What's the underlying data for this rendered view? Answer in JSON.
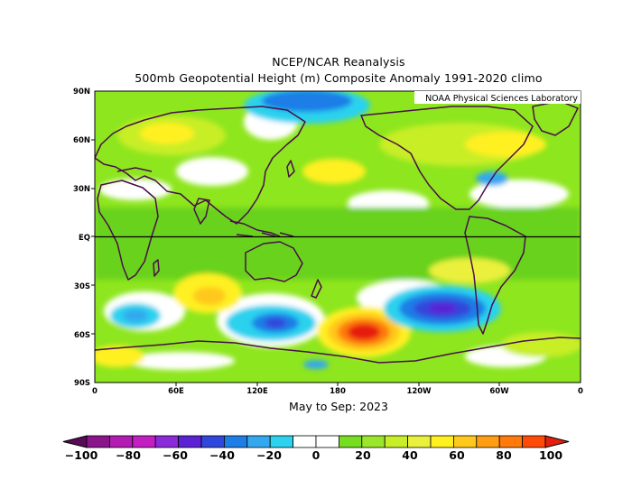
{
  "title_line1": "NCEP/NCAR Reanalysis",
  "title_line2": "500mb Geopotential Height (m) Composite Anomaly 1991-2020 climo",
  "credit": "NOAA Physical Sciences Laboratory",
  "subtitle": "May to Sep: 2023",
  "lat_labels": [
    "90N",
    "60N",
    "30N",
    "EQ",
    "30S",
    "60S",
    "90S"
  ],
  "lon_labels": [
    "0",
    "60E",
    "120E",
    "180",
    "120W",
    "60W",
    "0"
  ],
  "colorbar": {
    "colors": [
      "#5a0a5a",
      "#8a158a",
      "#b21cb2",
      "#c21ec2",
      "#8a2ad8",
      "#5a22d4",
      "#3046dc",
      "#1f7ee6",
      "#33a8ee",
      "#2cd2ee",
      "#ffffff",
      "#ffffff",
      "#77dd22",
      "#9ae62a",
      "#c8ee28",
      "#ebf03c",
      "#fff020",
      "#ffc81c",
      "#ff9e12",
      "#ff7a0a",
      "#ff4a08",
      "#e61e0e"
    ],
    "tick_labels": [
      "-100",
      "-80",
      "-60",
      "-40",
      "-20",
      "0",
      "20",
      "40",
      "60",
      "80",
      "100"
    ],
    "range": [
      -100,
      100
    ],
    "step": 10
  },
  "map_colors": {
    "light_green": "#8ee61e",
    "green": "#69d21c",
    "yellow_green": "#c8ee28",
    "yellow": "#fff020",
    "orange": "#ffc81c",
    "dark_orange": "#ff7a0a",
    "red": "#e61e0e",
    "cyan": "#2cd2ee",
    "light_blue": "#33a8ee",
    "blue": "#3046dc",
    "dark_blue": "#5a22d4",
    "coast": "#4a0e4a"
  }
}
